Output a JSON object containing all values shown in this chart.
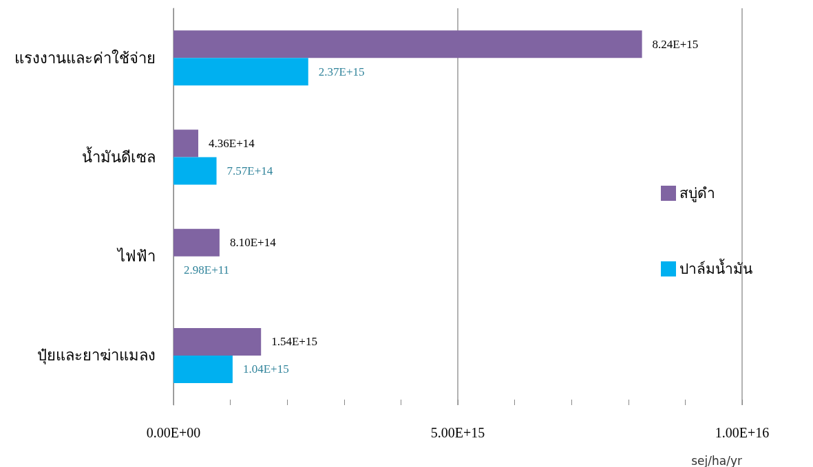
{
  "chart_data": {
    "type": "bar",
    "orientation": "horizontal",
    "xlabel": "sej/ha/yr",
    "categories": [
      "แรงงานและค่าใช้จ่าย",
      "น้ำมันดีเซล",
      "ไฟฟ้า",
      "ปุ๋ยและยาฆ่าแมลง"
    ],
    "series": [
      {
        "name": "สบู่ดำ",
        "color": "#8064a2",
        "values": [
          8240000000000000.0,
          436000000000000.0,
          810000000000000.0,
          1540000000000000.0
        ],
        "value_labels": [
          "8.24E+15",
          "4.36E+14",
          "8.10E+14",
          "1.54E+15"
        ]
      },
      {
        "name": "ปาล์มน้ำมัน",
        "color": "#00b0f0",
        "values": [
          2370000000000000.0,
          757000000000000.0,
          298000000000.0,
          1040000000000000.0
        ],
        "value_labels": [
          "2.37E+15",
          "7.57E+14",
          "2.98E+11",
          "1.04E+15"
        ]
      }
    ],
    "xlim": [
      0,
      1e+16
    ],
    "xticks": [
      {
        "value": 0,
        "label": "0.00E+00"
      },
      {
        "value": 1000000000000000.0,
        "label": null
      },
      {
        "value": 2000000000000000.0,
        "label": null
      },
      {
        "value": 3000000000000000.0,
        "label": null
      },
      {
        "value": 4000000000000000.0,
        "label": null
      },
      {
        "value": 5000000000000000.0,
        "label": "5.00E+15"
      },
      {
        "value": 6000000000000000.0,
        "label": null
      },
      {
        "value": 7000000000000000.0,
        "label": null
      },
      {
        "value": 8000000000000000.0,
        "label": null
      },
      {
        "value": 9000000000000000.0,
        "label": null
      },
      {
        "value": 1e+16,
        "label": "1.00E+16"
      }
    ],
    "grid": "x",
    "legend": "right"
  }
}
